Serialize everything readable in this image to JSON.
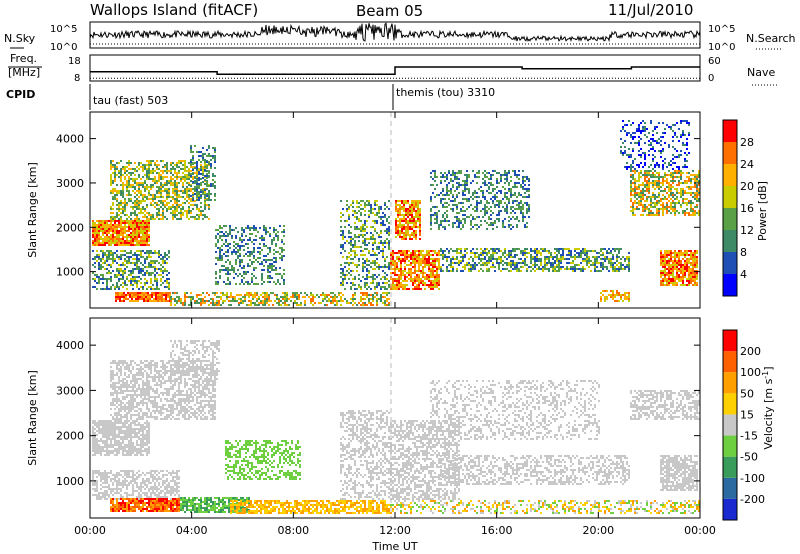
{
  "header": {
    "station": "Wallops Island (fitACF)",
    "beam": "Beam 05",
    "date": "11/Jul/2010"
  },
  "strip_labels": {
    "nsky": "N.Sky",
    "freq_line1": "Freq.",
    "freq_line2": "[MHz]",
    "cpid": "CPID",
    "nsearch": "N.Search",
    "nave": "Nave"
  },
  "cpid_segments": [
    {
      "label": "tau (fast) 503",
      "start_hour": 0
    },
    {
      "label": "themis (tou) 3310",
      "start_hour": 12
    }
  ],
  "chart_data": [
    {
      "type": "line",
      "panel": "noise",
      "left_ticks": [
        "10^5",
        "10^0"
      ],
      "right_ticks": [
        "10^5",
        "10^0"
      ],
      "series": [
        {
          "name": "N.Sky",
          "style": "solid"
        },
        {
          "name": "N.Search",
          "style": "dotted"
        }
      ]
    },
    {
      "type": "line",
      "panel": "frequency",
      "left_ticks": [
        18,
        8
      ],
      "right_ticks": [
        60,
        0
      ],
      "series": [
        {
          "name": "Freq.",
          "style": "solid",
          "x": [
            0,
            5,
            5,
            12,
            12,
            17,
            17,
            21.3,
            21.3,
            24
          ],
          "y": [
            11,
            11,
            10,
            10,
            13,
            13,
            12.3,
            12.3,
            13,
            13
          ]
        },
        {
          "name": "Nave",
          "style": "dotted",
          "x": [
            0,
            24
          ],
          "y": [
            2,
            2
          ]
        }
      ]
    },
    {
      "type": "heatmap",
      "panel": "power",
      "ylabel": "Slant Range [km]",
      "xlim": [
        0,
        24
      ],
      "ylim": [
        180,
        4600
      ],
      "yticks": [
        1000,
        2000,
        3000,
        4000
      ],
      "colorbar": {
        "label": "Power [dB]",
        "ticks": [
          4,
          8,
          12,
          16,
          20,
          24,
          28
        ],
        "colors": [
          "#0000ff",
          "#1f4fb4",
          "#3f8a66",
          "#5aa046",
          "#c8cc00",
          "#ffb000",
          "#ff7000",
          "#ff0000"
        ]
      }
    },
    {
      "type": "heatmap",
      "panel": "velocity",
      "ylabel": "Slant Range [km]",
      "xlabel": "Time UT",
      "xlim": [
        0,
        24
      ],
      "ylim": [
        180,
        4600
      ],
      "yticks": [
        1000,
        2000,
        3000,
        4000
      ],
      "xticks": [
        "00:00",
        "04:00",
        "08:00",
        "12:00",
        "16:00",
        "20:00",
        "00:00"
      ],
      "colorbar": {
        "label": "Velocity [m s^-1]",
        "ticks": [
          200,
          100,
          50,
          15,
          -15,
          -50,
          -100,
          -200
        ],
        "colors": [
          "#1a2ad0",
          "#2a6aa0",
          "#3a9c5a",
          "#6ed040",
          "#c8c8c8",
          "#ffd000",
          "#ffa000",
          "#ff6000",
          "#ff0000"
        ]
      }
    }
  ]
}
